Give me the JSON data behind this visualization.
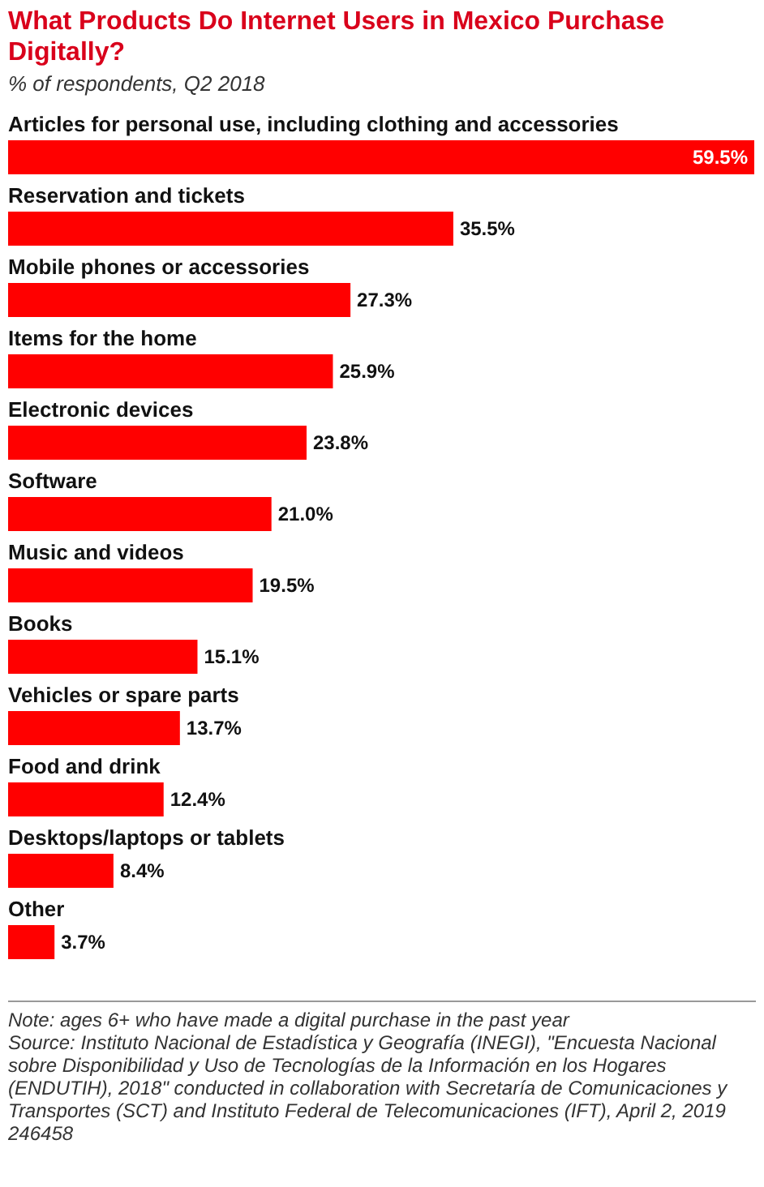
{
  "chart_data": {
    "type": "bar",
    "orientation": "horizontal",
    "title": "What Products Do Internet Users in Mexico Purchase Digitally?",
    "subtitle": "% of respondents, Q2 2018",
    "categories": [
      "Articles for personal use, including clothing and accessories",
      "Reservation and tickets",
      "Mobile phones or accessories",
      "Items for the home",
      "Electronic devices",
      "Software",
      "Music and videos",
      "Books",
      "Vehicles or spare parts",
      "Food and drink",
      "Desktops/laptops or tablets",
      "Other"
    ],
    "values": [
      59.5,
      35.5,
      27.3,
      25.9,
      23.8,
      21.0,
      19.5,
      15.1,
      13.7,
      12.4,
      8.4,
      3.7
    ],
    "value_labels": [
      "59.5%",
      "35.5%",
      "27.3%",
      "25.9%",
      "23.8%",
      "21.0%",
      "19.5%",
      "15.1%",
      "13.7%",
      "12.4%",
      "8.4%",
      "3.7%"
    ],
    "color": "#ff0000",
    "annotations": [
      "Note: ages 6+ who have made a digital purchase in the past year",
      "Source: Instituto Nacional de Estadística y Geografía (INEGI), \"Encuesta Nacional sobre Disponibilidad y Uso de Tecnologías de la Información en los Hogares (ENDUTIH), 2018\" conducted in collaboration with Secretaría de Comunicaciones y Transportes (SCT) and Instituto Federal de Telecomunicaciones (IFT), April 2, 2019",
      "246458"
    ]
  }
}
